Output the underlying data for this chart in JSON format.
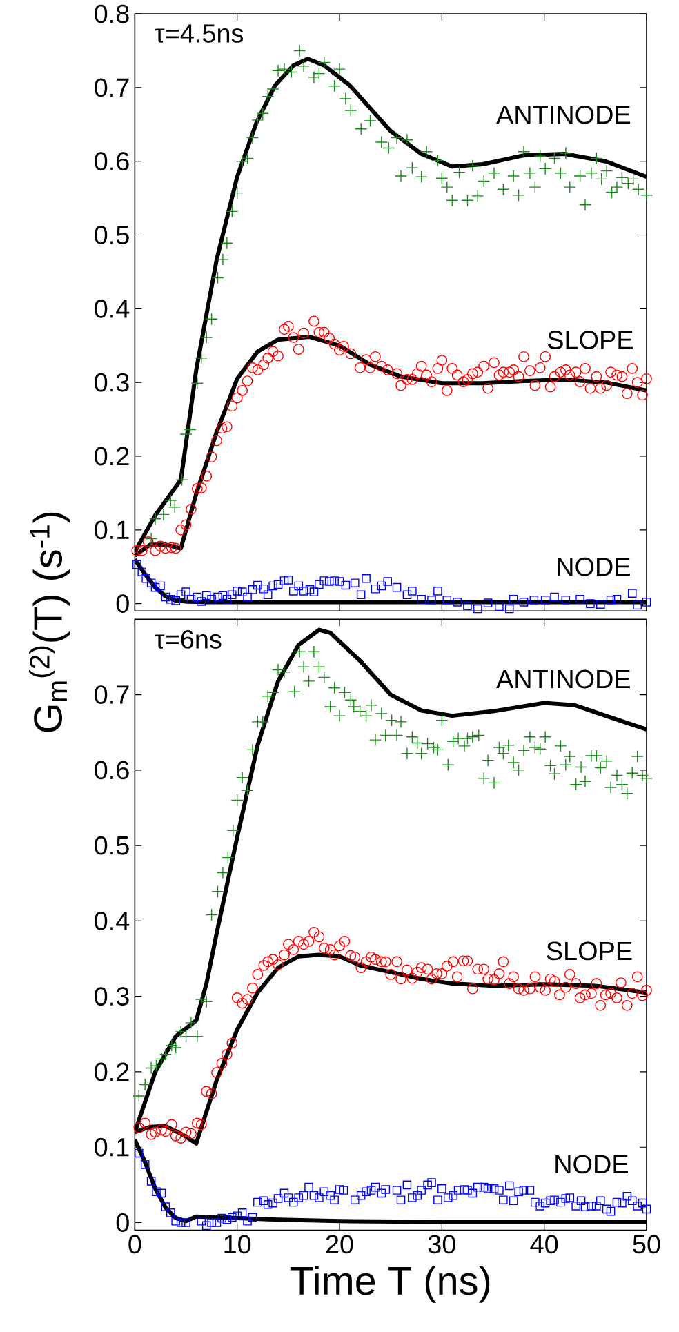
{
  "chart_data": [
    {
      "type": "scatter",
      "ylabel": "G$_{m}$$^{(2)}$(T) (s$^{-1}$)",
      "xlim": [
        0,
        50
      ],
      "ylim": [
        -0.01,
        0.8
      ],
      "xticks": [
        0,
        10,
        20,
        30,
        40,
        50
      ],
      "yticks": [
        0,
        0.1,
        0.2,
        0.3,
        0.4,
        0.5,
        0.6,
        0.7,
        0.8
      ],
      "tick_labels": "y",
      "annotations": [
        "τ=4.5ns",
        "ANTINODE",
        "SLOPE",
        "NODE"
      ],
      "series": [
        {
          "type": "scatter",
          "marker": "cross",
          "color": "#1a8c1a",
          "x": [
            1.6,
            2.0,
            2.8,
            3.5,
            3.9,
            4.6,
            5.0,
            5.4,
            6.1,
            6.5,
            7.0,
            7.5,
            8.1,
            8.6,
            9.0,
            9.5,
            10.0,
            10.5,
            11.0,
            11.5,
            12.0,
            12.5,
            13.0,
            13.5,
            14.0,
            14.6,
            15.3,
            16.1,
            16.5,
            17.5,
            18.0,
            18.5,
            19.5,
            20.0,
            20.6,
            21.1,
            22.1,
            23.0,
            24.1,
            24.8,
            25.6,
            26.0,
            26.6,
            27.1,
            28.0,
            28.5,
            29.6,
            30.0,
            30.5,
            31.0,
            31.7,
            32.5,
            33.0,
            33.5,
            34.1,
            35.1,
            36.0,
            37.0,
            37.5,
            38.0,
            38.6,
            39.1,
            39.6,
            40.1,
            41.0,
            41.6,
            42.1,
            42.5,
            43.5,
            44.0,
            44.6,
            45.1,
            45.6,
            46.1,
            46.6,
            47.1,
            47.6,
            48.2,
            48.7,
            49.2,
            50.0
          ],
          "values": [
            0.088,
            0.115,
            0.121,
            0.14,
            0.131,
            0.168,
            0.23,
            0.236,
            0.299,
            0.333,
            0.361,
            0.386,
            0.442,
            0.467,
            0.489,
            0.532,
            0.557,
            0.6,
            0.604,
            0.632,
            0.656,
            0.665,
            0.688,
            0.698,
            0.723,
            0.725,
            0.721,
            0.75,
            0.729,
            0.714,
            0.719,
            0.734,
            0.702,
            0.725,
            0.685,
            0.669,
            0.644,
            0.655,
            0.626,
            0.618,
            0.632,
            0.58,
            0.629,
            0.591,
            0.579,
            0.613,
            0.601,
            0.577,
            0.565,
            0.547,
            0.585,
            0.547,
            0.594,
            0.553,
            0.573,
            0.584,
            0.562,
            0.58,
            0.554,
            0.613,
            0.584,
            0.565,
            0.607,
            0.59,
            0.604,
            0.584,
            0.611,
            0.565,
            0.58,
            0.541,
            0.584,
            0.604,
            0.576,
            0.587,
            0.558,
            0.565,
            0.578,
            0.57,
            0.576,
            0.562,
            0.554
          ]
        },
        {
          "type": "scatter",
          "marker": "circle",
          "color": "#ff0000",
          "x": [
            0.2,
            0.7,
            1.3,
            2.0,
            2.5,
            3.0,
            3.6,
            4.0,
            4.5,
            5.0,
            5.5,
            6.1,
            6.5,
            7.0,
            7.5,
            8.0,
            8.5,
            9.0,
            9.5,
            10.0,
            10.5,
            11.0,
            11.5,
            12.0,
            12.6,
            13.0,
            13.5,
            14.0,
            14.6,
            15.0,
            15.5,
            16.0,
            16.5,
            17.5,
            18.0,
            18.5,
            19.0,
            19.5,
            20.0,
            20.4,
            21.1,
            22.0,
            22.6,
            23.0,
            23.5,
            24.1,
            24.7,
            25.6,
            26.0,
            26.6,
            27.1,
            27.6,
            28.0,
            28.5,
            29.0,
            29.6,
            30.0,
            30.5,
            31.0,
            31.5,
            32.1,
            32.5,
            33.0,
            33.5,
            34.1,
            34.5,
            35.1,
            35.6,
            36.0,
            36.6,
            37.0,
            37.5,
            38.0,
            38.6,
            39.1,
            39.6,
            40.1,
            40.6,
            41.0,
            41.6,
            42.1,
            42.5,
            43.1,
            43.5,
            44.0,
            44.5,
            45.1,
            45.5,
            46.1,
            46.5,
            47.1,
            47.6,
            48.1,
            48.6,
            49.1,
            49.6,
            50.0
          ],
          "values": [
            0.072,
            0.072,
            0.084,
            0.072,
            0.078,
            0.075,
            0.076,
            0.075,
            0.1,
            0.107,
            0.128,
            0.156,
            0.157,
            0.173,
            0.199,
            0.221,
            0.238,
            0.24,
            0.268,
            0.279,
            0.289,
            0.302,
            0.32,
            0.317,
            0.324,
            0.333,
            0.342,
            0.336,
            0.372,
            0.376,
            0.361,
            0.345,
            0.367,
            0.383,
            0.368,
            0.368,
            0.36,
            0.352,
            0.344,
            0.349,
            0.339,
            0.32,
            0.331,
            0.32,
            0.335,
            0.322,
            0.317,
            0.312,
            0.296,
            0.304,
            0.304,
            0.312,
            0.322,
            0.31,
            0.301,
            0.319,
            0.33,
            0.289,
            0.319,
            0.31,
            0.301,
            0.304,
            0.312,
            0.314,
            0.322,
            0.292,
            0.327,
            0.31,
            0.314,
            0.314,
            0.317,
            0.308,
            0.335,
            0.316,
            0.296,
            0.32,
            0.335,
            0.294,
            0.308,
            0.314,
            0.317,
            0.31,
            0.314,
            0.301,
            0.319,
            0.292,
            0.308,
            0.292,
            0.296,
            0.314,
            0.31,
            0.308,
            0.285,
            0.319,
            0.3,
            0.283,
            0.305
          ]
        },
        {
          "type": "scatter",
          "marker": "square",
          "color": "#0000ff",
          "x": [
            0.2,
            0.7,
            1.1,
            1.6,
            2.0,
            2.5,
            3.0,
            3.5,
            4.0,
            4.5,
            5.0,
            5.5,
            6.1,
            6.5,
            7.0,
            7.5,
            8.1,
            8.6,
            9.0,
            9.5,
            10.0,
            10.5,
            11.0,
            11.5,
            12.0,
            12.6,
            13.0,
            13.5,
            14.0,
            14.6,
            15.0,
            15.5,
            16.0,
            16.5,
            17.1,
            17.5,
            18.0,
            18.5,
            19.0,
            19.5,
            20.0,
            20.6,
            21.5,
            22.1,
            22.6,
            23.5,
            24.1,
            24.7,
            25.6,
            26.6,
            27.1,
            28.0,
            29.0,
            29.6,
            30.5,
            31.5,
            32.5,
            33.5,
            34.5,
            35.6,
            36.6,
            37.0,
            38.0,
            39.0,
            40.1,
            41.0,
            42.1,
            43.5,
            44.5,
            45.5,
            46.5,
            47.1,
            48.6,
            49.1,
            50.0
          ],
          "values": [
            0.053,
            0.043,
            0.034,
            0.028,
            0.022,
            0.024,
            0.009,
            0.006,
            0.004,
            0.012,
            0.016,
            0.006,
            0.009,
            0.003,
            0.011,
            0.006,
            0.009,
            0.011,
            0.006,
            0.012,
            0.017,
            0.016,
            0.009,
            0.019,
            0.025,
            0.02,
            0.012,
            0.024,
            0.026,
            0.031,
            0.032,
            0.017,
            0.024,
            0.017,
            0.019,
            0.016,
            0.026,
            0.031,
            0.03,
            0.031,
            0.03,
            0.025,
            0.028,
            0.012,
            0.034,
            0.02,
            0.024,
            0.03,
            0.022,
            0.012,
            0.017,
            0.006,
            0.005,
            0.017,
            0.005,
            0.002,
            -0.003,
            -0.007,
            0.001,
            -0.004,
            -0.007,
            0.006,
            0.002,
            0.005,
            0.005,
            0.009,
            0.005,
            0.006,
            0.0,
            -0.001,
            0.005,
            0.006,
            0.014,
            -0.002,
            0.002
          ]
        },
        {
          "type": "line",
          "color": "#000000",
          "x": [
            0,
            2,
            4.5,
            6,
            8,
            10,
            11.9,
            13.7,
            15.5,
            16.9,
            18.5,
            21,
            25,
            28,
            31,
            34,
            38,
            42,
            46,
            50
          ],
          "values": [
            0.07,
            0.12,
            0.168,
            0.317,
            0.467,
            0.579,
            0.653,
            0.703,
            0.73,
            0.739,
            0.73,
            0.703,
            0.641,
            0.61,
            0.593,
            0.596,
            0.608,
            0.61,
            0.6,
            0.579
          ]
        },
        {
          "type": "line",
          "color": "#000000",
          "x": [
            0,
            1.5,
            3,
            4.5,
            6,
            8,
            10,
            12,
            14,
            17,
            20,
            23,
            26,
            30,
            34,
            38,
            42,
            46,
            50
          ],
          "values": [
            0.065,
            0.08,
            0.08,
            0.075,
            0.149,
            0.233,
            0.305,
            0.342,
            0.358,
            0.362,
            0.35,
            0.324,
            0.308,
            0.299,
            0.299,
            0.302,
            0.304,
            0.3,
            0.289
          ]
        },
        {
          "type": "line",
          "color": "#000000",
          "x": [
            0,
            1,
            2,
            3,
            4,
            5,
            7,
            10,
            50
          ],
          "values": [
            0.06,
            0.04,
            0.022,
            0.01,
            0.004,
            0.003,
            0.002,
            0.002,
            0.002
          ]
        }
      ]
    },
    {
      "type": "scatter",
      "xlabel": "Time T (ns)",
      "xlim": [
        0,
        50
      ],
      "ylim": [
        -0.01,
        0.8
      ],
      "xticks": [
        0,
        10,
        20,
        30,
        40,
        50
      ],
      "yticks": [
        0,
        0.1,
        0.2,
        0.3,
        0.4,
        0.5,
        0.6,
        0.7
      ],
      "annotations": [
        "τ=6ns",
        "ANTINODE",
        "SLOPE",
        "NODE"
      ],
      "series": [
        {
          "type": "scatter",
          "marker": "cross",
          "color": "#1a8c1a",
          "x": [
            0.4,
            1.0,
            1.6,
            2.1,
            2.6,
            3.0,
            3.6,
            4.0,
            4.5,
            5.0,
            5.5,
            6.1,
            6.5,
            7.0,
            7.5,
            8.1,
            8.6,
            9.1,
            9.6,
            10.0,
            10.5,
            11.0,
            11.5,
            12.0,
            12.5,
            13.0,
            13.5,
            14.0,
            14.6,
            15.6,
            16.1,
            16.5,
            17.0,
            17.5,
            18.0,
            18.5,
            19.1,
            19.5,
            20.0,
            20.5,
            21.1,
            21.4,
            22.0,
            22.6,
            23.1,
            23.5,
            24.1,
            24.5,
            25.1,
            25.6,
            26.0,
            26.6,
            27.1,
            27.6,
            28.0,
            28.6,
            29.2,
            29.6,
            30.0,
            30.6,
            31.1,
            31.6,
            32.2,
            32.5,
            33.0,
            33.6,
            34.1,
            34.5,
            35.1,
            35.6,
            36.0,
            36.5,
            37.0,
            37.5,
            38.0,
            38.6,
            39.1,
            39.6,
            40.1,
            40.6,
            41.0,
            41.6,
            42.1,
            42.5,
            43.1,
            43.6,
            44.0,
            44.6,
            45.1,
            45.5,
            46.1,
            46.5,
            47.1,
            47.6,
            48.1,
            48.6,
            49.1,
            49.6,
            50.0
          ],
          "values": [
            0.168,
            0.183,
            0.205,
            0.208,
            0.217,
            0.223,
            0.235,
            0.232,
            0.253,
            0.247,
            0.265,
            0.247,
            0.296,
            0.293,
            0.408,
            0.439,
            0.464,
            0.484,
            0.52,
            0.56,
            0.59,
            0.573,
            0.627,
            0.664,
            0.664,
            0.698,
            0.703,
            0.733,
            0.73,
            0.704,
            0.757,
            0.737,
            0.718,
            0.757,
            0.737,
            0.723,
            0.684,
            0.709,
            0.672,
            0.703,
            0.693,
            0.684,
            0.678,
            0.672,
            0.686,
            0.64,
            0.675,
            0.646,
            0.666,
            0.646,
            0.664,
            0.622,
            0.644,
            0.636,
            0.622,
            0.635,
            0.63,
            0.627,
            0.666,
            0.607,
            0.638,
            0.642,
            0.632,
            0.642,
            0.644,
            0.646,
            0.589,
            0.613,
            0.583,
            0.63,
            0.622,
            0.633,
            0.61,
            0.6,
            0.626,
            0.644,
            0.63,
            0.628,
            0.644,
            0.606,
            0.595,
            0.632,
            0.607,
            0.618,
            0.581,
            0.604,
            0.585,
            0.619,
            0.619,
            0.603,
            0.612,
            0.577,
            0.593,
            0.581,
            0.569,
            0.596,
            0.618,
            0.593,
            0.589
          ]
        },
        {
          "type": "scatter",
          "marker": "circle",
          "color": "#ff0000",
          "x": [
            0.4,
            1.0,
            1.6,
            2.0,
            2.6,
            3.0,
            3.6,
            4.0,
            4.5,
            5.0,
            5.5,
            6.1,
            6.5,
            7.0,
            7.5,
            8.0,
            8.5,
            9.0,
            9.5,
            10.0,
            10.5,
            11.0,
            11.5,
            12.0,
            12.6,
            13.0,
            13.5,
            14.0,
            14.6,
            15.0,
            15.5,
            16.0,
            16.5,
            17.0,
            17.5,
            18.0,
            18.5,
            19.1,
            19.5,
            20.0,
            20.5,
            21.1,
            21.5,
            22.1,
            22.6,
            23.1,
            23.5,
            24.1,
            24.5,
            25.0,
            25.6,
            26.0,
            26.6,
            27.1,
            27.6,
            28.0,
            28.6,
            29.0,
            29.5,
            30.0,
            30.5,
            31.1,
            31.5,
            32.1,
            32.5,
            33.0,
            33.5,
            34.1,
            34.5,
            35.1,
            35.6,
            36.0,
            36.6,
            37.0,
            37.5,
            38.0,
            38.6,
            39.1,
            39.6,
            40.1,
            40.6,
            41.0,
            41.5,
            42.1,
            42.5,
            43.1,
            43.5,
            44.0,
            44.6,
            45.1,
            45.5,
            46.0,
            46.5,
            47.1,
            47.5,
            48.1,
            48.6,
            49.1,
            49.6,
            50.0
          ],
          "values": [
            0.126,
            0.132,
            0.117,
            0.12,
            0.123,
            0.121,
            0.13,
            0.115,
            0.112,
            0.12,
            0.118,
            0.132,
            0.13,
            0.174,
            0.171,
            0.199,
            0.211,
            0.223,
            0.238,
            0.298,
            0.291,
            0.296,
            0.311,
            0.329,
            0.341,
            0.346,
            0.349,
            0.342,
            0.355,
            0.369,
            0.362,
            0.373,
            0.369,
            0.373,
            0.385,
            0.379,
            0.364,
            0.362,
            0.355,
            0.367,
            0.373,
            0.354,
            0.352,
            0.338,
            0.346,
            0.352,
            0.349,
            0.346,
            0.346,
            0.329,
            0.346,
            0.323,
            0.335,
            0.324,
            0.332,
            0.338,
            0.336,
            0.323,
            0.33,
            0.33,
            0.34,
            0.346,
            0.326,
            0.347,
            0.347,
            0.31,
            0.336,
            0.336,
            0.323,
            0.322,
            0.33,
            0.346,
            0.317,
            0.326,
            0.31,
            0.308,
            0.31,
            0.326,
            0.312,
            0.308,
            0.323,
            0.32,
            0.302,
            0.312,
            0.329,
            0.317,
            0.298,
            0.302,
            0.304,
            0.317,
            0.288,
            0.302,
            0.304,
            0.298,
            0.318,
            0.288,
            0.304,
            0.326,
            0.301,
            0.308
          ]
        },
        {
          "type": "scatter",
          "marker": "square",
          "color": "#0000ff",
          "x": [
            0.4,
            1.0,
            1.6,
            2.1,
            2.6,
            3.0,
            3.5,
            4.0,
            4.5,
            5.0,
            6.5,
            7.0,
            7.5,
            8.0,
            8.5,
            9.0,
            9.5,
            10.0,
            10.5,
            11.0,
            11.5,
            12.0,
            12.6,
            13.0,
            13.5,
            14.0,
            14.6,
            15.0,
            15.5,
            16.0,
            16.5,
            17.0,
            17.5,
            18.0,
            18.5,
            19.1,
            19.5,
            20.0,
            20.4,
            21.5,
            22.1,
            22.6,
            23.1,
            23.5,
            24.1,
            24.5,
            25.6,
            26.0,
            26.6,
            27.1,
            27.6,
            28.0,
            28.6,
            29.0,
            29.6,
            30.0,
            30.6,
            31.1,
            31.6,
            32.2,
            32.5,
            33.0,
            33.5,
            34.1,
            34.5,
            35.1,
            35.6,
            36.0,
            36.6,
            37.0,
            37.5,
            38.0,
            38.6,
            39.1,
            39.6,
            40.1,
            40.6,
            41.0,
            41.6,
            42.1,
            42.5,
            43.1,
            43.6,
            44.0,
            44.6,
            45.1,
            45.5,
            46.1,
            46.5,
            47.1,
            47.6,
            48.1,
            48.6,
            49.1,
            49.6,
            50.0
          ],
          "values": [
            0.092,
            0.077,
            0.055,
            0.041,
            0.039,
            0.021,
            0.013,
            0.002,
            0.0,
            0.0,
            0.002,
            -0.004,
            0.0,
            0.0,
            0.006,
            0.004,
            0.007,
            0.009,
            0.013,
            0.002,
            0.007,
            0.027,
            0.029,
            0.024,
            0.026,
            0.032,
            0.039,
            0.033,
            0.027,
            0.033,
            0.036,
            0.047,
            0.036,
            0.033,
            0.041,
            0.036,
            0.03,
            0.044,
            0.043,
            0.03,
            0.036,
            0.041,
            0.043,
            0.047,
            0.039,
            0.044,
            0.043,
            0.03,
            0.05,
            0.033,
            0.036,
            0.043,
            0.05,
            0.053,
            0.03,
            0.045,
            0.033,
            0.036,
            0.043,
            0.044,
            0.043,
            0.039,
            0.047,
            0.047,
            0.045,
            0.045,
            0.043,
            0.03,
            0.049,
            0.029,
            0.041,
            0.043,
            0.043,
            0.027,
            0.022,
            0.026,
            0.029,
            0.03,
            0.027,
            0.032,
            0.033,
            0.022,
            0.029,
            0.021,
            0.022,
            0.022,
            0.029,
            0.018,
            0.015,
            0.027,
            0.026,
            0.035,
            0.029,
            0.022,
            0.026,
            0.018
          ]
        },
        {
          "type": "line",
          "color": "#000000",
          "x": [
            0,
            2,
            4,
            6,
            7,
            8,
            10,
            12,
            14,
            16,
            18,
            19.1,
            22,
            25,
            28,
            31,
            35,
            40,
            43,
            46,
            50
          ],
          "values": [
            0.12,
            0.2,
            0.247,
            0.268,
            0.317,
            0.384,
            0.511,
            0.633,
            0.718,
            0.766,
            0.786,
            0.782,
            0.745,
            0.7,
            0.679,
            0.672,
            0.678,
            0.689,
            0.686,
            0.672,
            0.654
          ]
        },
        {
          "type": "line",
          "color": "#000000",
          "x": [
            0,
            1.5,
            3,
            4.5,
            6,
            7,
            8,
            10,
            12,
            14,
            16,
            18,
            20,
            22,
            25,
            28,
            31,
            35,
            40,
            45,
            50
          ],
          "values": [
            0.12,
            0.127,
            0.128,
            0.118,
            0.105,
            0.147,
            0.189,
            0.256,
            0.305,
            0.338,
            0.353,
            0.355,
            0.353,
            0.341,
            0.332,
            0.323,
            0.317,
            0.314,
            0.316,
            0.314,
            0.305
          ]
        },
        {
          "type": "line",
          "color": "#000000",
          "x": [
            0,
            1,
            2,
            3,
            4,
            5,
            6,
            8,
            10,
            14,
            20,
            30,
            50
          ],
          "values": [
            0.11,
            0.08,
            0.045,
            0.02,
            0.006,
            0.002,
            0.008,
            0.007,
            0.006,
            0.004,
            0.002,
            0.001,
            0.001
          ]
        }
      ]
    }
  ]
}
